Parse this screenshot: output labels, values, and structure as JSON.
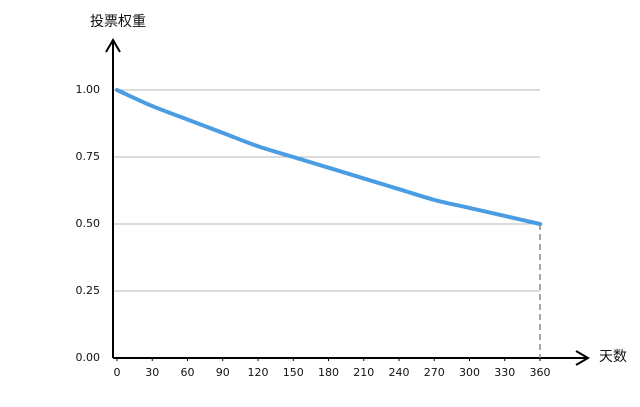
{
  "chart_data": {
    "type": "line",
    "y_label": "投票权重",
    "x_label": "天数",
    "x": [
      0,
      30,
      60,
      90,
      120,
      150,
      180,
      210,
      240,
      270,
      300,
      330,
      360
    ],
    "series": [
      {
        "name": "投票权重",
        "color": "#4a9de2",
        "values": [
          1,
          0.94,
          0.89,
          0.84,
          0.79,
          0.75,
          0.71,
          0.67,
          0.63,
          0.59,
          0.56,
          0.53,
          0.5
        ]
      }
    ],
    "xlim": [
      0,
      360
    ],
    "xticks": [
      0,
      30,
      60,
      90,
      120,
      150,
      180,
      210,
      240,
      270,
      300,
      330,
      360
    ],
    "ylim": [
      0,
      1
    ],
    "yticks": [
      {
        "value": 0,
        "label": "0.00"
      },
      0.25,
      {
        "value": 0.5,
        "label": "0.50"
      },
      0.75,
      {
        "value": 1,
        "label": "1.00"
      }
    ],
    "grid": true
  }
}
